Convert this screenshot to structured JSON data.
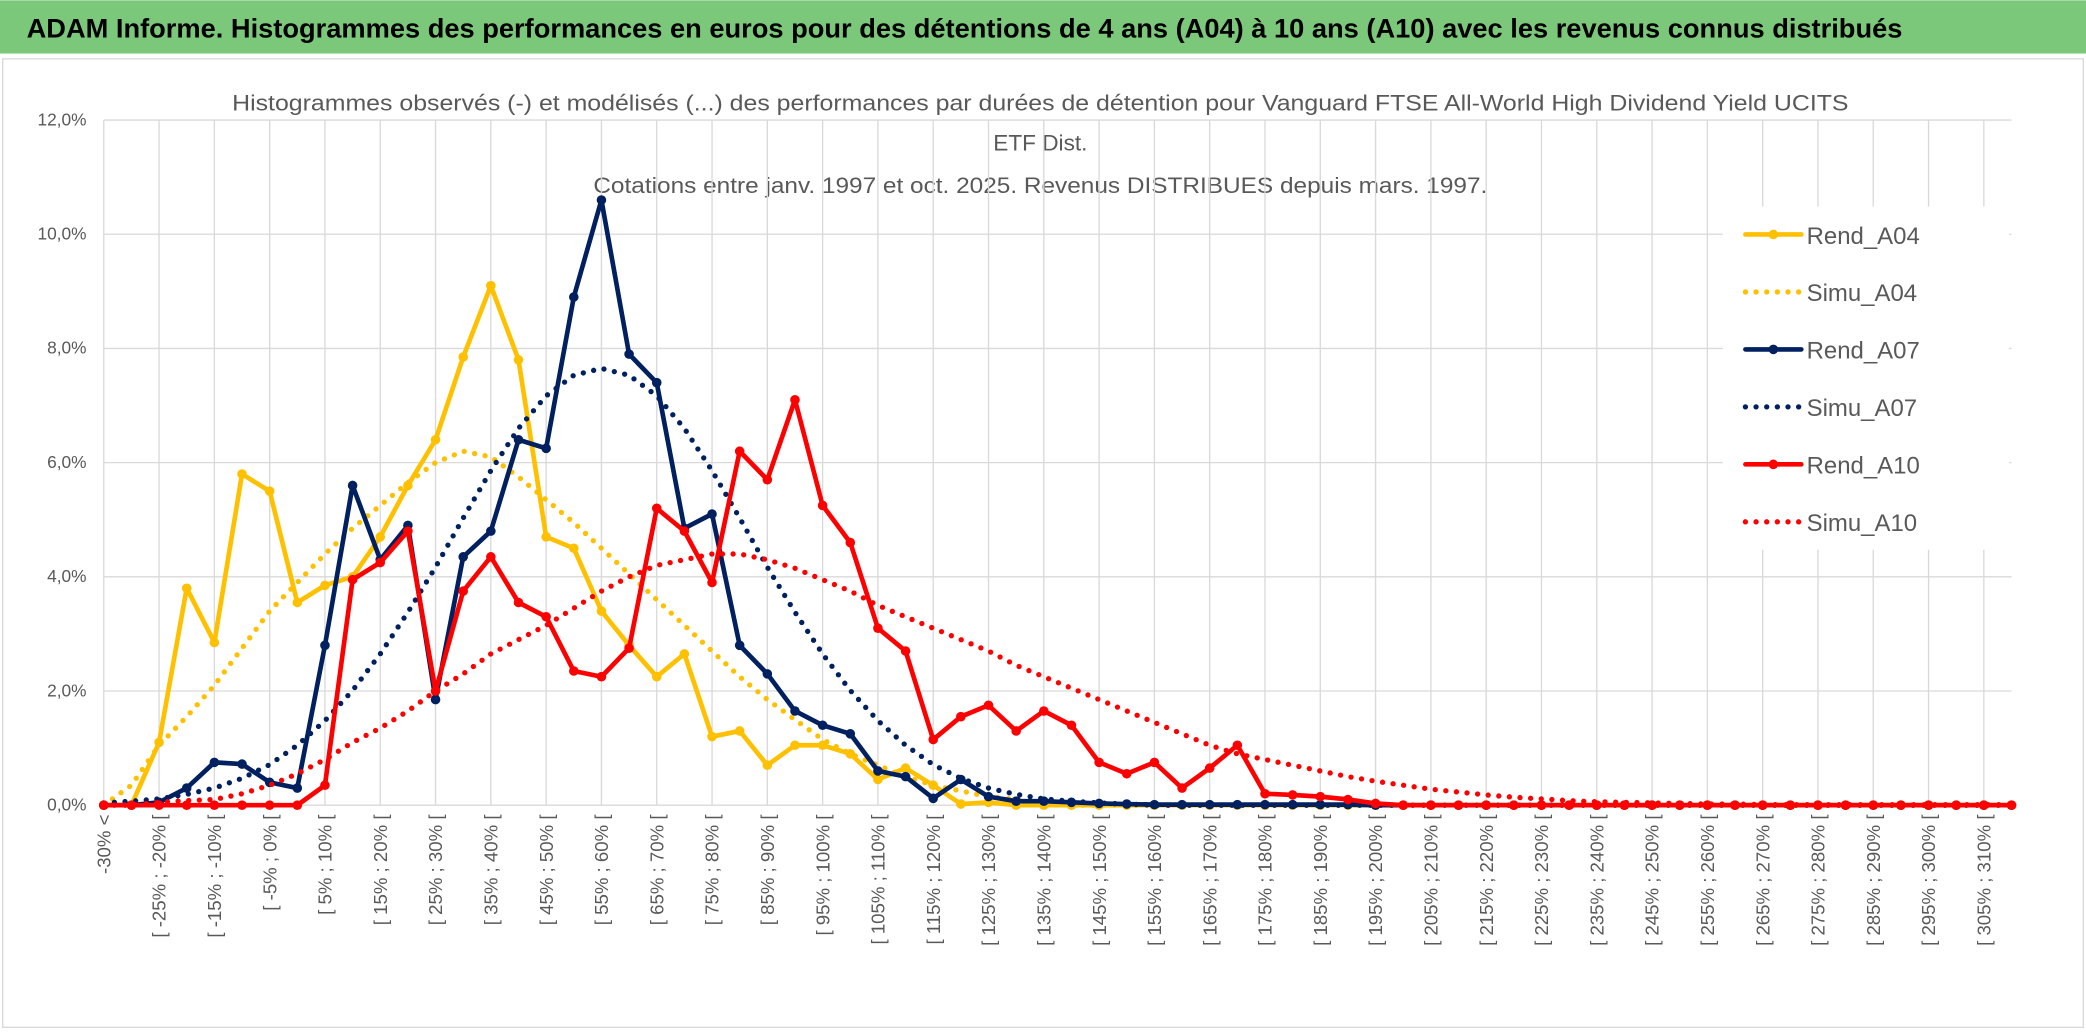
{
  "header": {
    "title": "ADAM Informe. Histogrammes des performances en euros pour des détentions de 4 ans (A04) à 10 ans (A10) avec les revenus connus distribués"
  },
  "chart_data": {
    "type": "line",
    "title": [
      "Histogrammes observés (-) et modélisés (...) des performances par durées de détention pour Vanguard FTSE All-World High Dividend Yield UCITS",
      "ETF Dist.",
      "Cotations entre janv. 1997 et oct. 2025. Revenus DISTRIBUES depuis mars. 1997."
    ],
    "categories": [
      "-30% <",
      null,
      "[ -25% ; -20% [",
      null,
      "[ -15% ; -10% [",
      null,
      "[ -5% ; 0% [",
      null,
      "[ 5% ; 10% [",
      null,
      "[ 15% ; 20% [",
      null,
      "[ 25% ; 30% [",
      null,
      "[ 35% ; 40% [",
      null,
      "[ 45% ; 50% [",
      null,
      "[ 55% ; 60% [",
      null,
      "[ 65% ; 70% [",
      null,
      "[ 75% ; 80% [",
      null,
      "[ 85% ; 90% [",
      null,
      "[ 95% ; 100% [",
      null,
      "[ 105% ; 110% [",
      null,
      "[ 115% ; 120% [",
      null,
      "[ 125% ; 130% [",
      null,
      "[ 135% ; 140% [",
      null,
      "[ 145% ; 150% [",
      null,
      "[ 155% ; 160% [",
      null,
      "[ 165% ; 170% [",
      null,
      "[ 175% ; 180% [",
      null,
      "[ 185% ; 190% [",
      null,
      "[ 195% ; 200% [",
      null,
      "[ 205% ; 210% [",
      null,
      "[ 215% ; 220% [",
      null,
      "[ 225% ; 230% [",
      null,
      "[ 235% ; 240% [",
      null,
      "[ 245% ; 250% [",
      null,
      "[ 255% ; 260% [",
      null,
      "[ 265% ; 270% [",
      null,
      "[ 275% ; 280% [",
      null,
      "[ 285% ; 290% [",
      null,
      "[ 295% ; 300% [",
      null,
      "[ 305% ; 310% [",
      null
    ],
    "series": [
      {
        "name": "Rend_A04",
        "color": "#FFC000",
        "style": "solid",
        "markers": true,
        "values": [
          0,
          0,
          1.1,
          3.8,
          2.85,
          5.8,
          5.5,
          3.55,
          3.85,
          4.0,
          4.7,
          5.6,
          6.4,
          7.85,
          9.1,
          7.8,
          4.7,
          4.5,
          3.4,
          2.8,
          2.25,
          2.65,
          1.2,
          1.3,
          0.7,
          1.05,
          1.05,
          0.9,
          0.45,
          0.65,
          0.35,
          0.02,
          0.05,
          0,
          0,
          0,
          0,
          0,
          0,
          0,
          0,
          0,
          0,
          0,
          0,
          0,
          0,
          0,
          0,
          0,
          0,
          0,
          0,
          0,
          0,
          0,
          0,
          0,
          0,
          0,
          0,
          0,
          0,
          0,
          0,
          0,
          0,
          0,
          0,
          0
        ]
      },
      {
        "name": "Simu_A04",
        "color": "#FFC000",
        "style": "dotted",
        "markers": false,
        "values": [
          0,
          0.35,
          1.05,
          1.55,
          2.1,
          2.75,
          3.4,
          3.9,
          4.4,
          4.85,
          5.25,
          5.65,
          6.0,
          6.2,
          6.1,
          5.75,
          5.35,
          4.95,
          4.5,
          4.05,
          3.6,
          3.15,
          2.7,
          2.25,
          1.85,
          1.5,
          1.15,
          0.9,
          0.7,
          0.5,
          0.35,
          0.25,
          0.15,
          0.1,
          0.05,
          0,
          0,
          0,
          0,
          0,
          0,
          0,
          0,
          0,
          0,
          0,
          0,
          0,
          0,
          0,
          0,
          0,
          0,
          0,
          0,
          0,
          0,
          0,
          0,
          0,
          0,
          0,
          0,
          0,
          0,
          0,
          0,
          0,
          0,
          0
        ]
      },
      {
        "name": "Rend_A07",
        "color": "#002060",
        "style": "solid",
        "markers": true,
        "values": [
          0,
          0,
          0.05,
          0.3,
          0.75,
          0.72,
          0.4,
          0.3,
          2.8,
          5.6,
          4.3,
          4.9,
          1.85,
          4.35,
          4.8,
          6.4,
          6.25,
          8.9,
          10.6,
          7.9,
          7.4,
          4.85,
          5.1,
          2.8,
          2.3,
          1.65,
          1.4,
          1.25,
          0.6,
          0.5,
          0.12,
          0.45,
          0.15,
          0.07,
          0.07,
          0.05,
          0.03,
          0.02,
          0.01,
          0.01,
          0.01,
          0.01,
          0.01,
          0.01,
          0.01,
          0.01,
          0,
          0,
          0,
          0,
          0,
          0,
          0,
          0,
          0,
          0,
          0,
          0,
          0,
          0,
          0,
          0,
          0,
          0,
          0,
          0,
          0,
          0,
          0,
          0
        ]
      },
      {
        "name": "Simu_A07",
        "color": "#002060",
        "style": "dotted",
        "markers": false,
        "values": [
          0.04,
          0.07,
          0.11,
          0.19,
          0.3,
          0.47,
          0.71,
          1.05,
          1.48,
          2.01,
          2.65,
          3.38,
          4.17,
          5.03,
          5.86,
          6.6,
          7.17,
          7.53,
          7.65,
          7.53,
          7.17,
          6.6,
          5.86,
          5.03,
          4.17,
          3.38,
          2.65,
          2.01,
          1.48,
          1.05,
          0.71,
          0.47,
          0.3,
          0.19,
          0.11,
          0.07,
          0.04,
          0.02,
          0,
          0,
          0,
          0,
          0,
          0,
          0,
          0,
          0,
          0,
          0,
          0,
          0,
          0,
          0,
          0,
          0,
          0,
          0,
          0,
          0,
          0,
          0,
          0,
          0,
          0,
          0,
          0,
          0,
          0,
          0,
          0
        ]
      },
      {
        "name": "Rend_A10",
        "color": "#FF0000",
        "style": "solid",
        "markers": true,
        "values": [
          0,
          0,
          0,
          0,
          0,
          0,
          0,
          0,
          0.35,
          3.95,
          4.25,
          4.8,
          2.0,
          3.75,
          4.35,
          3.55,
          3.3,
          2.35,
          2.25,
          2.75,
          5.2,
          4.8,
          3.9,
          6.2,
          5.7,
          7.1,
          5.25,
          4.6,
          3.1,
          2.7,
          1.15,
          1.55,
          1.75,
          1.3,
          1.65,
          1.4,
          0.75,
          0.55,
          0.75,
          0.3,
          0.65,
          1.05,
          0.2,
          0.18,
          0.15,
          0.1,
          0.03,
          0,
          0,
          0,
          0,
          0,
          0,
          0,
          0,
          0,
          0,
          0,
          0,
          0,
          0,
          0,
          0,
          0,
          0,
          0,
          0,
          0,
          0,
          0
        ]
      },
      {
        "name": "Simu_A10",
        "color": "#FF0000",
        "style": "dotted",
        "markers": false,
        "values": [
          0,
          0,
          0.05,
          0.08,
          0.1,
          0.2,
          0.35,
          0.55,
          0.8,
          1.1,
          1.35,
          1.65,
          2.0,
          2.3,
          2.65,
          2.9,
          3.15,
          3.45,
          3.75,
          4.0,
          4.2,
          4.3,
          4.4,
          4.4,
          4.3,
          4.15,
          3.95,
          3.75,
          3.5,
          3.3,
          3.1,
          2.9,
          2.7,
          2.45,
          2.25,
          2.05,
          1.85,
          1.65,
          1.45,
          1.25,
          1.05,
          0.9,
          0.8,
          0.7,
          0.6,
          0.5,
          0.42,
          0.35,
          0.28,
          0.23,
          0.18,
          0.14,
          0.11,
          0.08,
          0.06,
          0.05,
          0.04,
          0.03,
          0.02,
          0.02,
          0.01,
          0.01,
          0.01,
          0.01,
          0.01,
          0.01,
          0.01,
          0.01,
          0.01,
          0.01
        ]
      }
    ],
    "ylim": [
      0,
      12
    ],
    "yticks": [
      {
        "value": 0,
        "label": "0,0%"
      },
      {
        "value": 2,
        "label": "2,0%"
      },
      {
        "value": 4,
        "label": "4,0%"
      },
      {
        "value": 6,
        "label": "6,0%"
      },
      {
        "value": 8,
        "label": "8,0%"
      },
      {
        "value": 10,
        "label": "10,0%"
      },
      {
        "value": 12,
        "label": "12,0%"
      }
    ],
    "grid": true,
    "legend": "right"
  }
}
